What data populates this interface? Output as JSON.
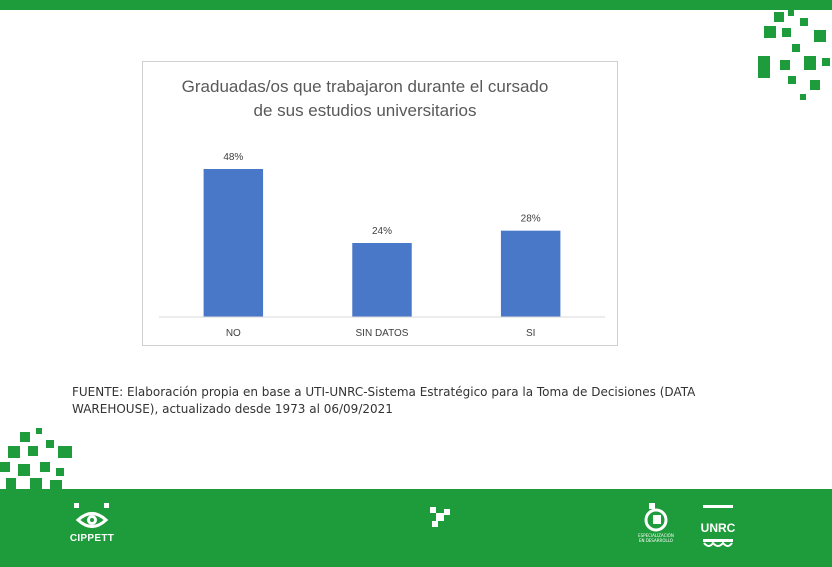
{
  "colors": {
    "brand_green": "#1e9b3a",
    "bar": "#4a78c8",
    "title_text": "#595959",
    "label_text": "#404040",
    "axis_line": "#d9d9d9"
  },
  "chart_data": {
    "type": "bar",
    "title": "Graduadas/os que trabajaron durante el cursado de sus estudios universitarios",
    "categories": [
      "NO",
      "SIN DATOS",
      "SI"
    ],
    "values": [
      48,
      24,
      28
    ],
    "data_labels": [
      "48%",
      "24%",
      "28%"
    ],
    "unit": "%",
    "ylim": [
      0,
      60
    ],
    "grid": false,
    "legend": "none"
  },
  "source_note": "FUENTE: Elaboración propia en base a UTI-UNRC-Sistema Estratégico para la Toma de Decisiones (DATA WAREHOUSE), actualizado desde 1973 al 06/09/2021",
  "footer": {
    "left_logo_text": "CIPPETT",
    "left_logo_icon": "eye-icon",
    "center_icon": "pixel-mark-icon",
    "right_logo_1_text": "ESPECIALIZACIÓN EN DESARROLLO",
    "right_logo_2_text": "UNRC"
  }
}
